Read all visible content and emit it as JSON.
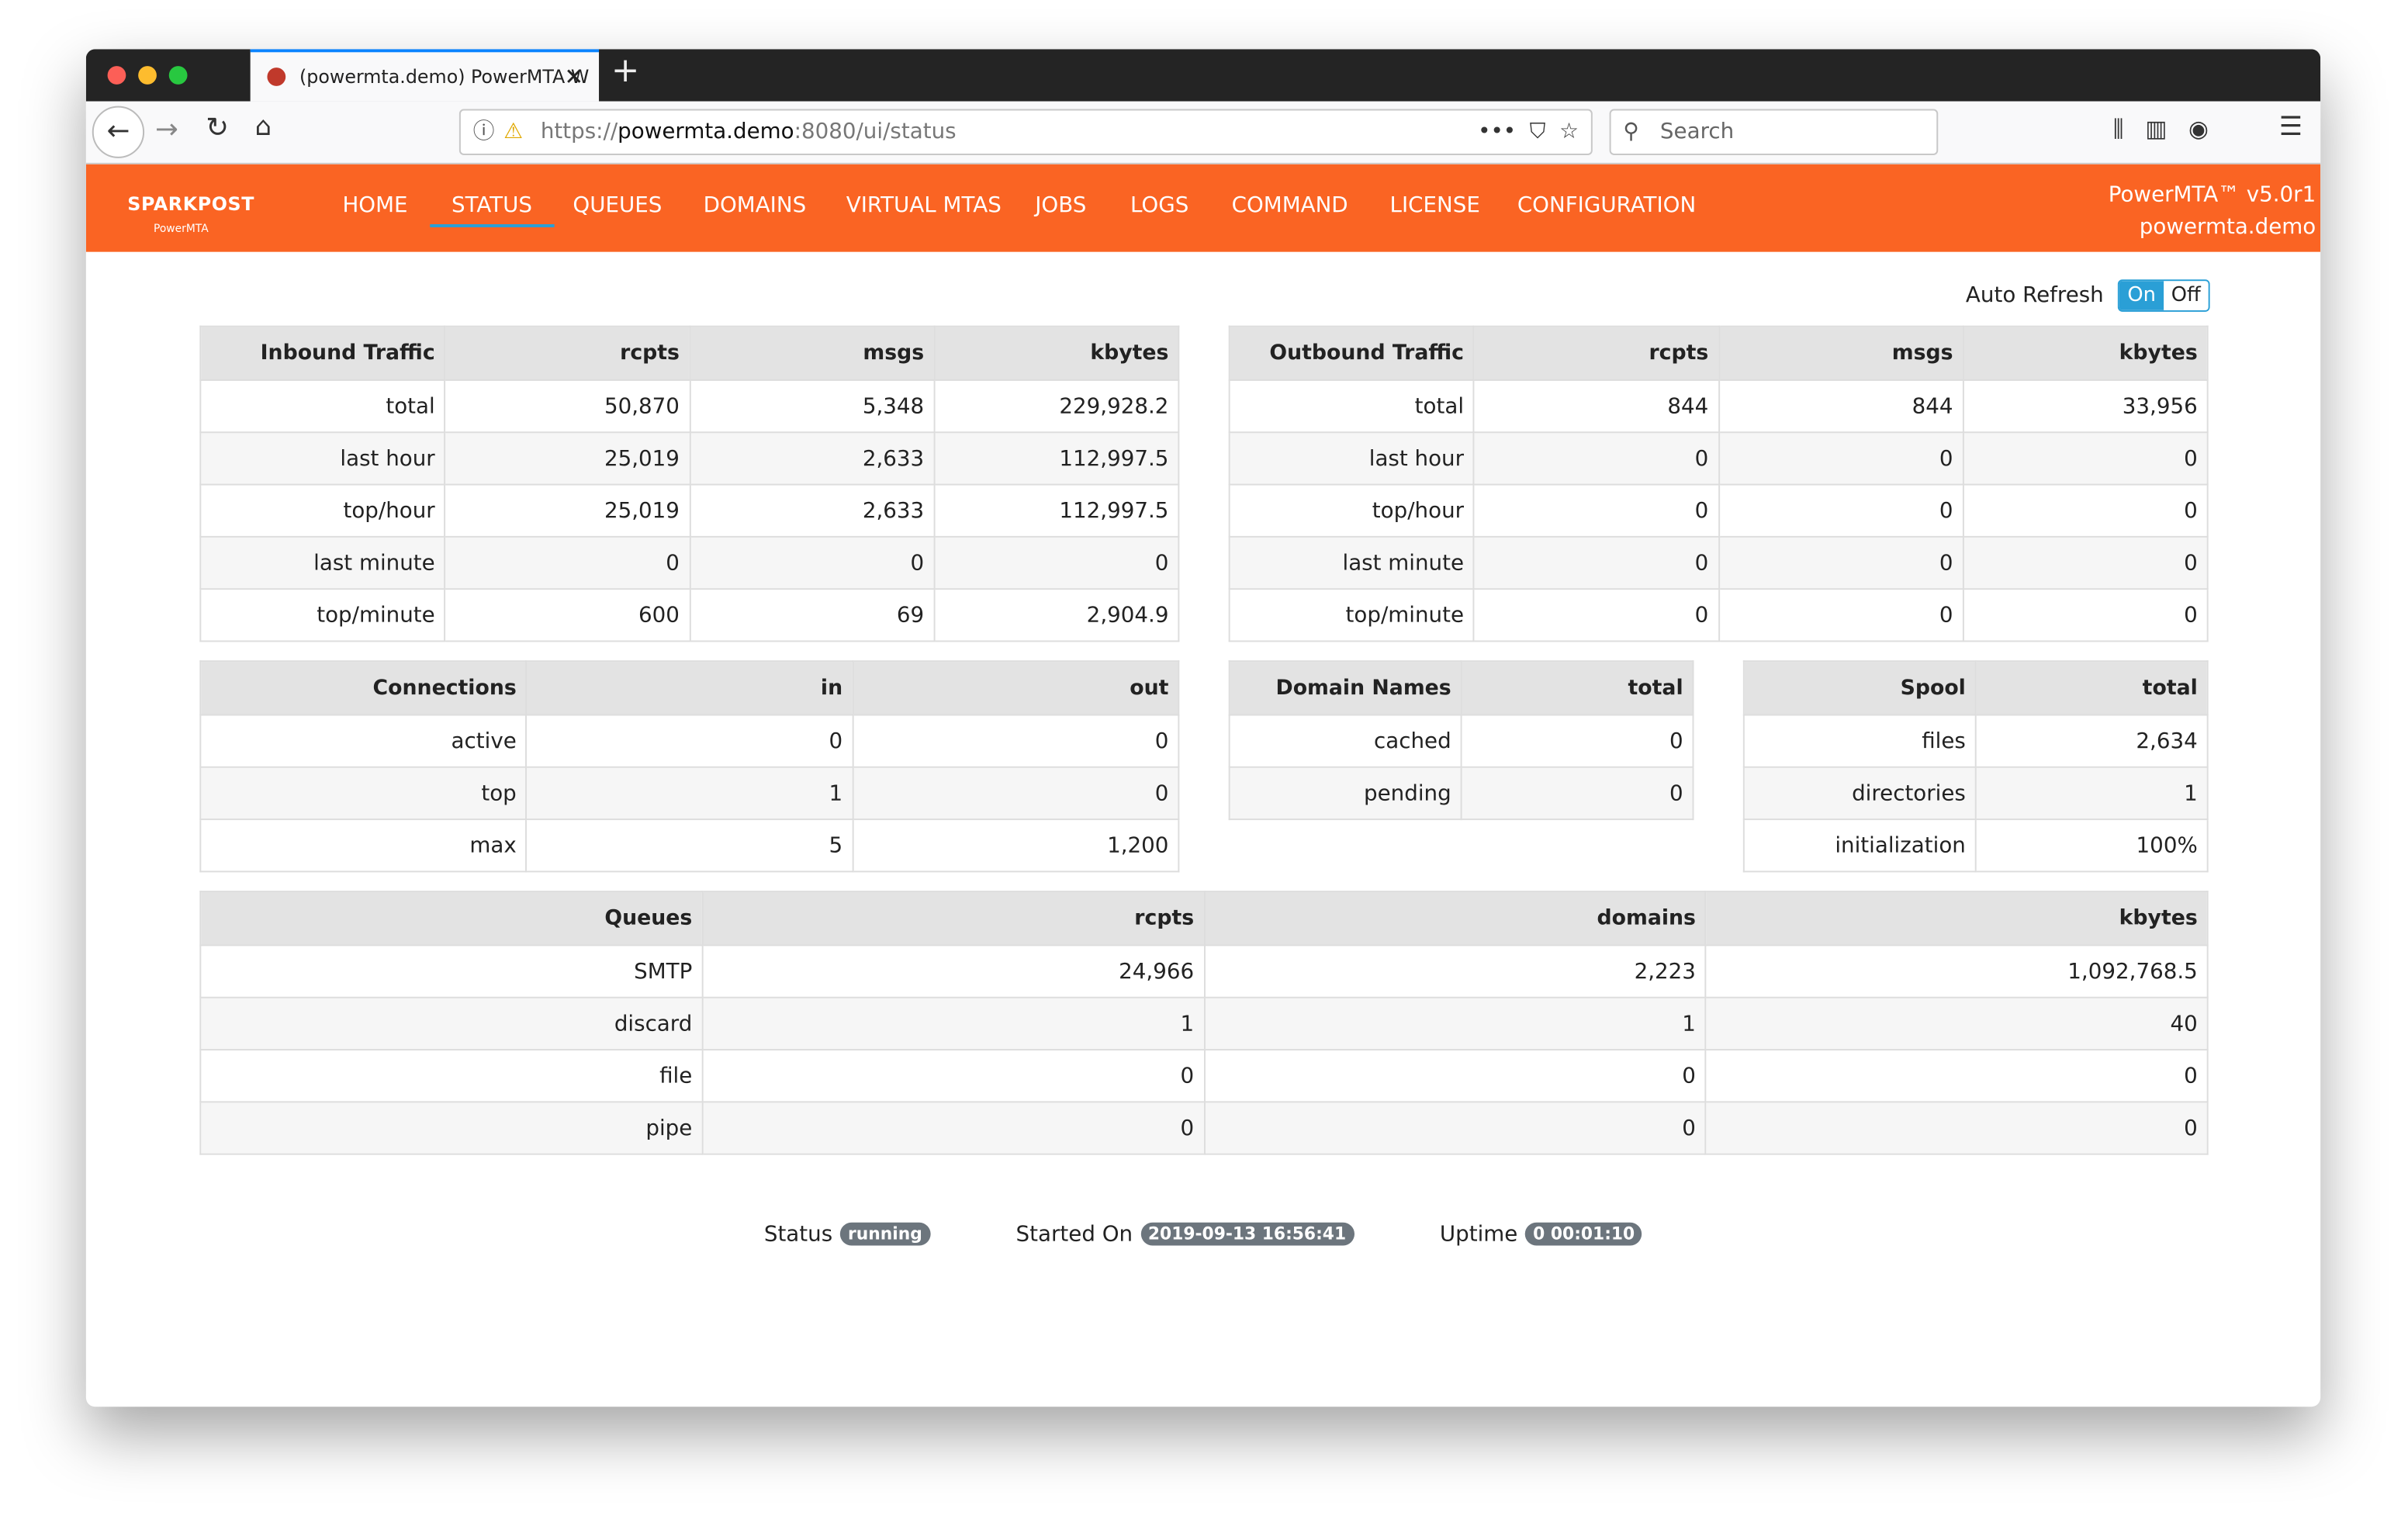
{
  "browser": {
    "tab_title": "(powermta.demo) PowerMTA W",
    "url_scheme": "https://",
    "url_host": "powermta.demo",
    "url_rest": ":8080/ui/status",
    "search_placeholder": "Search"
  },
  "header": {
    "logo": "SPARKPOST",
    "logo_sub": "PowerMTA",
    "nav": [
      "HOME",
      "STATUS",
      "QUEUES",
      "DOMAINS",
      "VIRTUAL MTAS",
      "JOBS",
      "LOGS",
      "COMMAND",
      "LICENSE",
      "CONFIGURATION"
    ],
    "active_nav": 1,
    "version": "PowerMTA™ v5.0r1",
    "host": "powermta.demo"
  },
  "auto_refresh": {
    "label": "Auto Refresh",
    "on": "On",
    "off": "Off"
  },
  "tables": [
    {
      "header": [
        "Inbound Traffic",
        "rcpts",
        "msgs",
        "kbytes"
      ],
      "rows": [
        [
          "total",
          "50,870",
          "5,348",
          "229,928.2"
        ],
        [
          "last hour",
          "25,019",
          "2,633",
          "112,997.5"
        ],
        [
          "top/hour",
          "25,019",
          "2,633",
          "112,997.5"
        ],
        [
          "last minute",
          "0",
          "0",
          "0"
        ],
        [
          "top/minute",
          "600",
          "69",
          "2,904.9"
        ]
      ]
    },
    {
      "header": [
        "Outbound Traffic",
        "rcpts",
        "msgs",
        "kbytes"
      ],
      "rows": [
        [
          "total",
          "844",
          "844",
          "33,956"
        ],
        [
          "last hour",
          "0",
          "0",
          "0"
        ],
        [
          "top/hour",
          "0",
          "0",
          "0"
        ],
        [
          "last minute",
          "0",
          "0",
          "0"
        ],
        [
          "top/minute",
          "0",
          "0",
          "0"
        ]
      ]
    },
    {
      "header": [
        "Connections",
        "in",
        "out"
      ],
      "rows": [
        [
          "active",
          "0",
          "0"
        ],
        [
          "top",
          "1",
          "0"
        ],
        [
          "max",
          "5",
          "1,200"
        ]
      ]
    },
    {
      "header": [
        "Domain Names",
        "total"
      ],
      "rows": [
        [
          "cached",
          "0"
        ],
        [
          "pending",
          "0"
        ]
      ]
    },
    {
      "header": [
        "Spool",
        "total"
      ],
      "rows": [
        [
          "files",
          "2,634"
        ],
        [
          "directories",
          "1"
        ],
        [
          "initialization",
          "100%"
        ]
      ]
    },
    {
      "header": [
        "Queues",
        "rcpts",
        "domains",
        "kbytes"
      ],
      "rows": [
        [
          "SMTP",
          "24,966",
          "2,223",
          "1,092,768.5"
        ],
        [
          "discard",
          "1",
          "1",
          "40"
        ],
        [
          "file",
          "0",
          "0",
          "0"
        ],
        [
          "pipe",
          "0",
          "0",
          "0"
        ]
      ]
    }
  ],
  "status": [
    {
      "label": "Status",
      "value": "running"
    },
    {
      "label": "Started On",
      "value": "2019-09-13 16:56:41"
    },
    {
      "label": "Uptime",
      "value": "0 00:01:10"
    }
  ]
}
